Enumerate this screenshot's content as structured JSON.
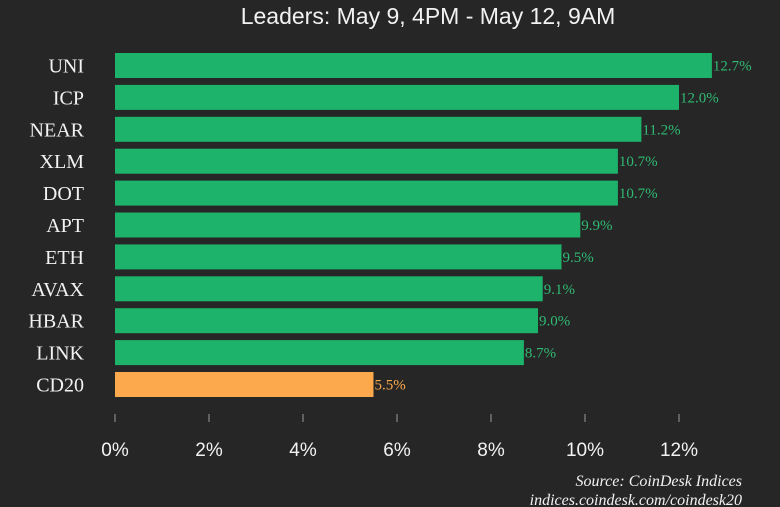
{
  "chart_data": {
    "type": "bar",
    "orientation": "horizontal",
    "title": "Leaders: May 9, 4PM - May 12, 9AM",
    "categories": [
      "UNI",
      "ICP",
      "NEAR",
      "XLM",
      "DOT",
      "APT",
      "ETH",
      "AVAX",
      "HBAR",
      "LINK",
      "CD20"
    ],
    "values": [
      12.7,
      12.0,
      11.2,
      10.7,
      10.7,
      9.9,
      9.5,
      9.1,
      9.0,
      8.7,
      5.5
    ],
    "value_labels": [
      "12.7%",
      "12.0%",
      "11.2%",
      "10.7%",
      "10.7%",
      "9.9%",
      "9.5%",
      "9.1%",
      "9.0%",
      "8.7%",
      "5.5%"
    ],
    "highlight_category": "CD20",
    "xlim": [
      0,
      13
    ],
    "xticks": [
      0,
      2,
      4,
      6,
      8,
      10,
      12
    ],
    "xtick_labels": [
      "0%",
      "2%",
      "4%",
      "6%",
      "8%",
      "10%",
      "12%"
    ],
    "xlabel": "",
    "ylabel": "",
    "grid": false,
    "legend": "none",
    "colors": {
      "background": "#262626",
      "bar": "#1eb36b",
      "bar_highlight": "#fca84c",
      "label": "#2fba72",
      "label_highlight": "#fca84c",
      "text": "#f2f2f2",
      "tick": "#9a9a9a"
    }
  },
  "source": {
    "line1": "Source: CoinDesk Indices",
    "line2": "indices.coindesk.com/coindesk20"
  }
}
